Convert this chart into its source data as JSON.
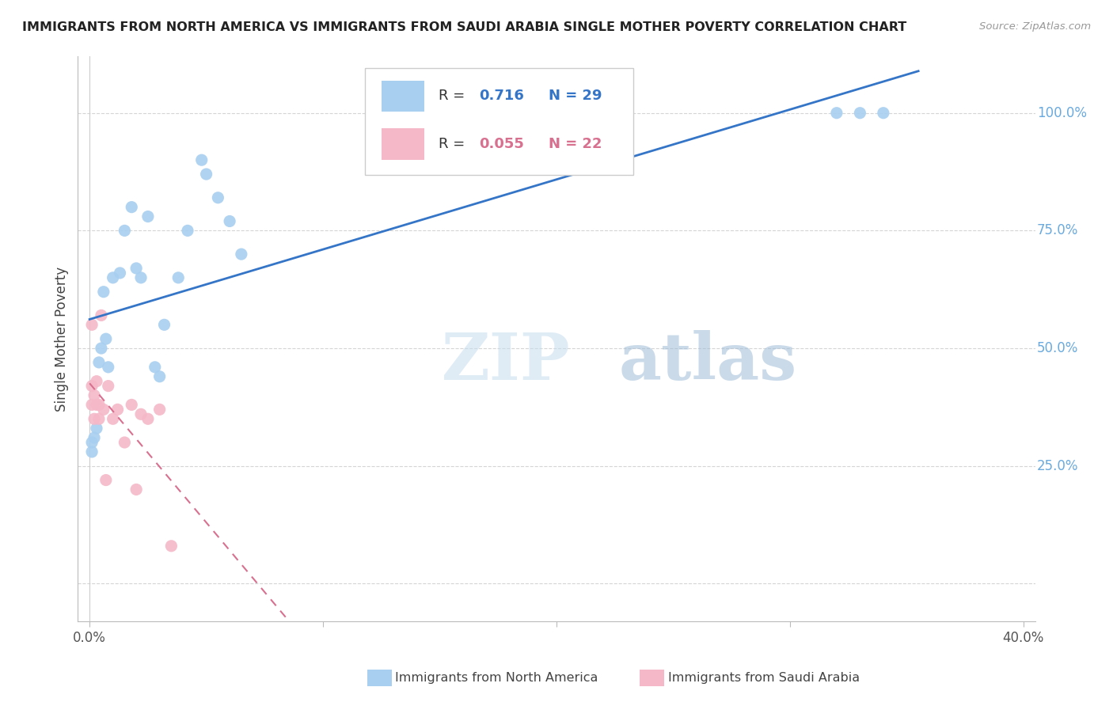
{
  "title": "IMMIGRANTS FROM NORTH AMERICA VS IMMIGRANTS FROM SAUDI ARABIA SINGLE MOTHER POVERTY CORRELATION CHART",
  "source": "Source: ZipAtlas.com",
  "ylabel": "Single Mother Poverty",
  "watermark": "ZIPatlas",
  "blue_color": "#A8CFF0",
  "pink_color": "#F5B8C8",
  "blue_line_color": "#3575C8",
  "pink_line_color": "#D87090",
  "blue_r": "0.716",
  "blue_n": "29",
  "pink_r": "0.055",
  "pink_n": "22",
  "blue_scatter_x": [
    0.001,
    0.001,
    0.002,
    0.003,
    0.004,
    0.005,
    0.006,
    0.007,
    0.008,
    0.01,
    0.013,
    0.015,
    0.018,
    0.02,
    0.022,
    0.025,
    0.028,
    0.03,
    0.032,
    0.038,
    0.042,
    0.048,
    0.05,
    0.055,
    0.06,
    0.065,
    0.32,
    0.33,
    0.34
  ],
  "blue_scatter_y": [
    0.3,
    0.28,
    0.31,
    0.33,
    0.47,
    0.5,
    0.62,
    0.52,
    0.46,
    0.65,
    0.66,
    0.75,
    0.8,
    0.67,
    0.65,
    0.78,
    0.46,
    0.44,
    0.55,
    0.65,
    0.75,
    0.9,
    0.87,
    0.82,
    0.77,
    0.7,
    1.0,
    1.0,
    1.0
  ],
  "pink_scatter_x": [
    0.001,
    0.001,
    0.001,
    0.002,
    0.002,
    0.003,
    0.003,
    0.004,
    0.004,
    0.005,
    0.006,
    0.007,
    0.008,
    0.01,
    0.012,
    0.015,
    0.018,
    0.02,
    0.022,
    0.025,
    0.03,
    0.035
  ],
  "pink_scatter_y": [
    0.55,
    0.42,
    0.38,
    0.4,
    0.35,
    0.43,
    0.38,
    0.38,
    0.35,
    0.57,
    0.37,
    0.22,
    0.42,
    0.35,
    0.37,
    0.3,
    0.38,
    0.2,
    0.36,
    0.35,
    0.37,
    0.08
  ],
  "xlim_min": -0.005,
  "xlim_max": 0.405,
  "ylim_min": -0.08,
  "ylim_max": 1.12,
  "ytick_vals": [
    0.0,
    0.25,
    0.5,
    0.75,
    1.0
  ],
  "ytick_labels": [
    "",
    "25.0%",
    "50.0%",
    "75.0%",
    "100.0%"
  ],
  "xtick_vals": [
    0.0,
    0.1,
    0.2,
    0.3,
    0.4
  ],
  "xtick_labels": [
    "0.0%",
    "",
    "",
    "",
    "40.0%"
  ],
  "grid_color": "#D5D5D5",
  "title_color": "#222222",
  "right_label_color": "#6AAADE",
  "source_color": "#999999"
}
